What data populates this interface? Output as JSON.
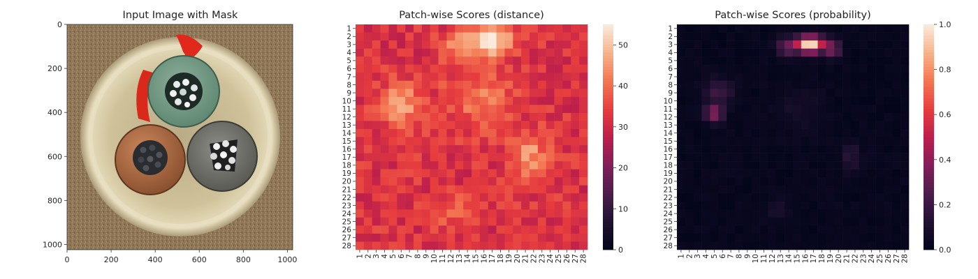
{
  "chart_data": [
    {
      "type": "image",
      "title": "Input Image with Mask",
      "xlim": [
        0,
        1024
      ],
      "ylim": [
        1024,
        0
      ],
      "xticks": [
        0,
        200,
        400,
        600,
        800,
        1000
      ],
      "yticks": [
        0,
        200,
        400,
        600,
        800,
        1000
      ],
      "image_content": {
        "background": "textured brown sandy surface",
        "object": "circular cable cross-section in a light resin disc",
        "cores": [
          {
            "color": "teal-green insulation",
            "center": [
              530,
              300
            ],
            "wires": "bright silver strands"
          },
          {
            "color": "copper-brown insulation",
            "center": [
              375,
              600
            ],
            "wires": "dark strands"
          },
          {
            "color": "grey insulation",
            "center": [
              705,
              590
            ],
            "wires": "bright silver strands"
          }
        ],
        "mask": {
          "color": "#e2261c",
          "description": "red anomaly mask along the upper-left edge of the green core and a flag shape at the top"
        }
      }
    },
    {
      "type": "heatmap",
      "title": "Patch-wise Scores (distance)",
      "rows": 28,
      "cols": 28,
      "xticklabels": [
        "1",
        "2",
        "3",
        "4",
        "5",
        "6",
        "7",
        "8",
        "9",
        "10",
        "11",
        "12",
        "13",
        "14",
        "15",
        "16",
        "17",
        "18",
        "19",
        "20",
        "21",
        "22",
        "23",
        "24",
        "25",
        "26",
        "27",
        "28"
      ],
      "yticklabels": [
        "1",
        "2",
        "3",
        "4",
        "5",
        "6",
        "7",
        "8",
        "9",
        "10",
        "11",
        "12",
        "13",
        "14",
        "15",
        "16",
        "17",
        "18",
        "19",
        "20",
        "21",
        "22",
        "23",
        "24",
        "25",
        "26",
        "27",
        "28"
      ],
      "colormap": "rocket",
      "vmin": 0,
      "vmax": 55,
      "colorbar_ticks": [
        0,
        10,
        20,
        30,
        40,
        50
      ],
      "base": 32,
      "hotspots": [
        {
          "row": 2.5,
          "col": 16.5,
          "value": 55,
          "spread_rows": 1.4,
          "spread_cols": 2.2
        },
        {
          "row": 3.3,
          "col": 13.5,
          "value": 45,
          "spread_rows": 1.6,
          "spread_cols": 1.6
        },
        {
          "row": 10.5,
          "col": 6,
          "value": 45,
          "spread_rows": 2.0,
          "spread_cols": 2.0
        },
        {
          "row": 17,
          "col": 21.5,
          "value": 45,
          "spread_rows": 2.2,
          "spread_cols": 1.6
        },
        {
          "row": 9.5,
          "col": 15.5,
          "value": 41,
          "spread_rows": 2.8,
          "spread_cols": 3.0
        },
        {
          "row": 23.5,
          "col": 12.5,
          "value": 40,
          "spread_rows": 1.4,
          "spread_cols": 2.0
        }
      ]
    },
    {
      "type": "heatmap",
      "title": "Patch-wise Scores (probability)",
      "rows": 28,
      "cols": 28,
      "xticklabels": [
        "1",
        "2",
        "3",
        "4",
        "5",
        "6",
        "7",
        "8",
        "9",
        "10",
        "11",
        "12",
        "13",
        "14",
        "15",
        "16",
        "17",
        "18",
        "19",
        "20",
        "21",
        "22",
        "23",
        "24",
        "25",
        "26",
        "27",
        "28"
      ],
      "yticklabels": [
        "1",
        "2",
        "3",
        "4",
        "5",
        "6",
        "7",
        "8",
        "9",
        "10",
        "11",
        "12",
        "13",
        "14",
        "15",
        "16",
        "17",
        "18",
        "19",
        "20",
        "21",
        "22",
        "23",
        "24",
        "25",
        "26",
        "27",
        "28"
      ],
      "colormap": "rocket",
      "vmin": 0.0,
      "vmax": 1.0,
      "colorbar_ticks": [
        "0.0",
        "0.2",
        "0.4",
        "0.6",
        "0.8",
        "1.0"
      ],
      "base": 0.02,
      "hotspots": [
        {
          "row": 3,
          "col": 16.5,
          "value": 1.0,
          "spread_rows": 0.7,
          "spread_cols": 1.3
        },
        {
          "row": 3.3,
          "col": 13.8,
          "value": 0.35,
          "spread_rows": 0.8,
          "spread_cols": 0.8
        },
        {
          "row": 3.5,
          "col": 19.3,
          "value": 0.45,
          "spread_rows": 0.8,
          "spread_cols": 0.6
        },
        {
          "row": 11.5,
          "col": 5,
          "value": 0.4,
          "spread_rows": 0.8,
          "spread_cols": 0.8
        },
        {
          "row": 9,
          "col": 5.5,
          "value": 0.2,
          "spread_rows": 1.2,
          "spread_cols": 1.3
        },
        {
          "row": 17,
          "col": 21.5,
          "value": 0.15,
          "spread_rows": 1.3,
          "spread_cols": 0.8
        },
        {
          "row": 23.5,
          "col": 12.5,
          "value": 0.1,
          "spread_rows": 1.0,
          "spread_cols": 1.0
        },
        {
          "row": 11,
          "col": 15,
          "value": 0.08,
          "spread_rows": 2.0,
          "spread_cols": 2.0
        }
      ]
    }
  ]
}
